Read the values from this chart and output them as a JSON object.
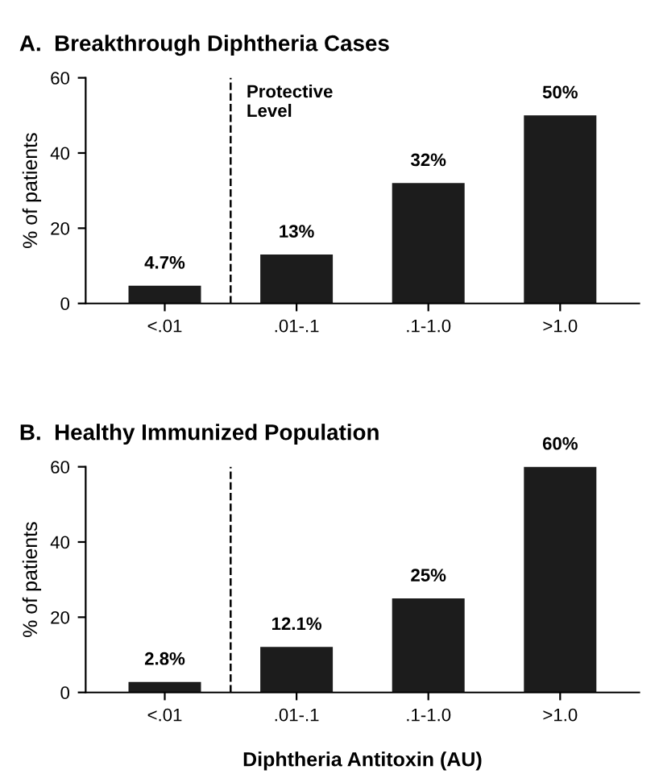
{
  "chart_data": [
    {
      "type": "bar",
      "title": "A.  Breakthrough Diphtheria Cases",
      "ylabel": "% of patients",
      "categories": [
        "<.01",
        ".01-.1",
        ".1-1.0",
        ">1.0"
      ],
      "values": [
        4.7,
        13,
        32,
        50
      ],
      "value_labels": [
        "4.7%",
        "13%",
        "32%",
        "50%"
      ],
      "color": "#1c1c1c",
      "ylim": [
        0,
        60
      ],
      "yticks": [
        0,
        20,
        40,
        60
      ],
      "grid": false,
      "legend": false,
      "annotations": [
        "Protective Level"
      ]
    },
    {
      "type": "bar",
      "title": "B.  Healthy Immunized Population",
      "ylabel": "% of patients",
      "xlabel": "Diphtheria Antitoxin (AU)",
      "categories": [
        "<.01",
        ".01-.1",
        ".1-1.0",
        ">1.0"
      ],
      "values": [
        2.8,
        12.1,
        25,
        60
      ],
      "value_labels": [
        "2.8%",
        "12.1%",
        "25%",
        "60%"
      ],
      "color": "#1c1c1c",
      "ylim": [
        0,
        60
      ],
      "yticks": [
        0,
        20,
        40,
        60
      ],
      "grid": false,
      "legend": false
    }
  ]
}
